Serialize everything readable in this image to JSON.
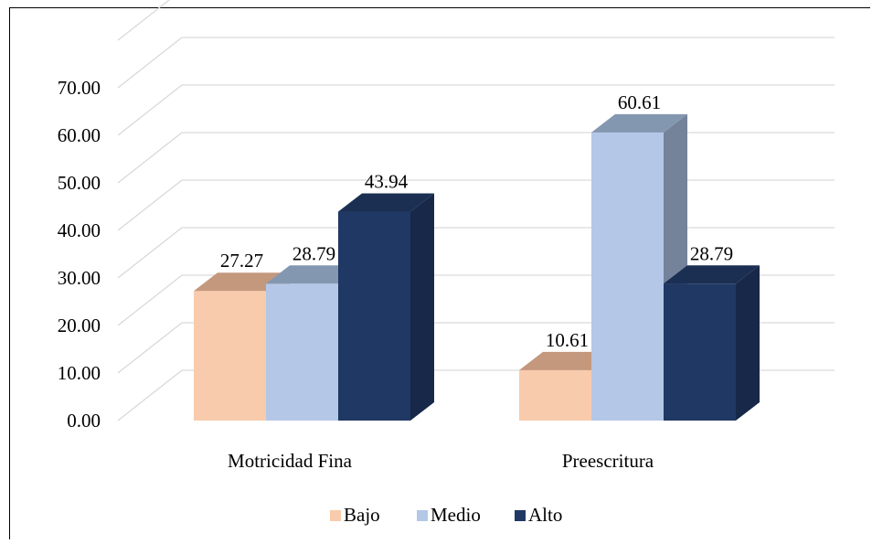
{
  "chart_data": {
    "type": "bar",
    "title": "",
    "xlabel": "",
    "ylabel": "",
    "categories": [
      "Motricidad Fina",
      "Preescritura"
    ],
    "series": [
      {
        "name": "Bajo",
        "values": [
          27.27,
          10.61
        ],
        "labels": [
          "27.27",
          "10.61"
        ]
      },
      {
        "name": "Medio",
        "values": [
          28.79,
          60.61
        ],
        "labels": [
          "28.79",
          "60.61"
        ]
      },
      {
        "name": "Alto",
        "values": [
          43.94,
          28.79
        ],
        "labels": [
          "43.94",
          "28.79"
        ]
      }
    ],
    "yticks": [
      "0.00",
      "10.00",
      "20.00",
      "30.00",
      "40.00",
      "50.00",
      "60.00",
      "70.00"
    ],
    "ylim": [
      0,
      80
    ],
    "grid": true,
    "legend_position": "bottom",
    "colors": {
      "Bajo": {
        "front": "#f8cbad",
        "top": "#c4987d",
        "side": "#c4987d"
      },
      "Medio": {
        "front": "#b4c7e7",
        "top": "#8497b0",
        "side": "#74839a"
      },
      "Alto": {
        "front": "#203864",
        "top": "#1b2f53",
        "side": "#172848"
      }
    },
    "gridline_color": "#d9d9d9"
  }
}
